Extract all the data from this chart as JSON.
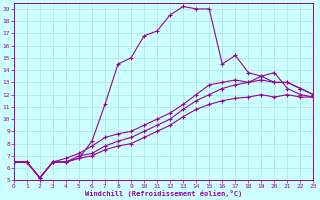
{
  "xlabel": "Windchill (Refroidissement éolien,°C)",
  "bg_color": "#ccffff",
  "grid_color": "#b0dede",
  "line_color": "#990099",
  "xlim": [
    0,
    23
  ],
  "ylim": [
    5,
    19.5
  ],
  "xticks": [
    0,
    1,
    2,
    3,
    4,
    5,
    6,
    7,
    8,
    9,
    10,
    11,
    12,
    13,
    14,
    15,
    16,
    17,
    18,
    19,
    20,
    21,
    22,
    23
  ],
  "yticks": [
    5,
    6,
    7,
    8,
    9,
    10,
    11,
    12,
    13,
    14,
    15,
    16,
    17,
    18,
    19
  ],
  "line1_x": [
    0,
    1,
    2,
    3,
    4,
    5,
    6,
    7,
    8,
    9,
    10,
    11,
    12,
    13,
    14,
    15,
    16,
    17,
    18,
    19,
    20,
    21,
    22,
    23
  ],
  "line1_y": [
    6.5,
    6.5,
    5.2,
    6.5,
    6.5,
    6.8,
    8.2,
    11.2,
    14.5,
    15.0,
    16.8,
    17.2,
    18.5,
    19.2,
    19.0,
    19.0,
    14.5,
    15.2,
    13.8,
    13.5,
    13.8,
    12.5,
    12.0,
    11.8
  ],
  "line2_x": [
    0,
    1,
    2,
    3,
    4,
    5,
    6,
    7,
    8,
    9,
    10,
    11,
    12,
    13,
    14,
    15,
    16,
    17,
    18,
    19,
    20,
    21,
    22,
    23
  ],
  "line2_y": [
    6.5,
    6.5,
    5.2,
    6.5,
    6.8,
    7.2,
    7.8,
    8.5,
    8.8,
    9.0,
    9.5,
    10.0,
    10.5,
    11.2,
    12.0,
    12.8,
    13.0,
    13.2,
    13.0,
    13.5,
    13.0,
    13.0,
    12.5,
    12.0
  ],
  "line3_x": [
    0,
    1,
    2,
    3,
    4,
    5,
    6,
    7,
    8,
    9,
    10,
    11,
    12,
    13,
    14,
    15,
    16,
    17,
    18,
    19,
    20,
    21,
    22,
    23
  ],
  "line3_y": [
    6.5,
    6.5,
    5.2,
    6.5,
    6.5,
    7.0,
    7.2,
    7.8,
    8.2,
    8.5,
    9.0,
    9.5,
    10.0,
    10.8,
    11.5,
    12.0,
    12.5,
    12.8,
    13.0,
    13.2,
    13.0,
    13.0,
    12.5,
    12.0
  ],
  "line4_x": [
    0,
    1,
    2,
    3,
    4,
    5,
    6,
    7,
    8,
    9,
    10,
    11,
    12,
    13,
    14,
    15,
    16,
    17,
    18,
    19,
    20,
    21,
    22,
    23
  ],
  "line4_y": [
    6.5,
    6.5,
    5.2,
    6.5,
    6.5,
    6.8,
    7.0,
    7.5,
    7.8,
    8.0,
    8.5,
    9.0,
    9.5,
    10.2,
    10.8,
    11.2,
    11.5,
    11.7,
    11.8,
    12.0,
    11.8,
    12.0,
    11.8,
    11.8
  ]
}
